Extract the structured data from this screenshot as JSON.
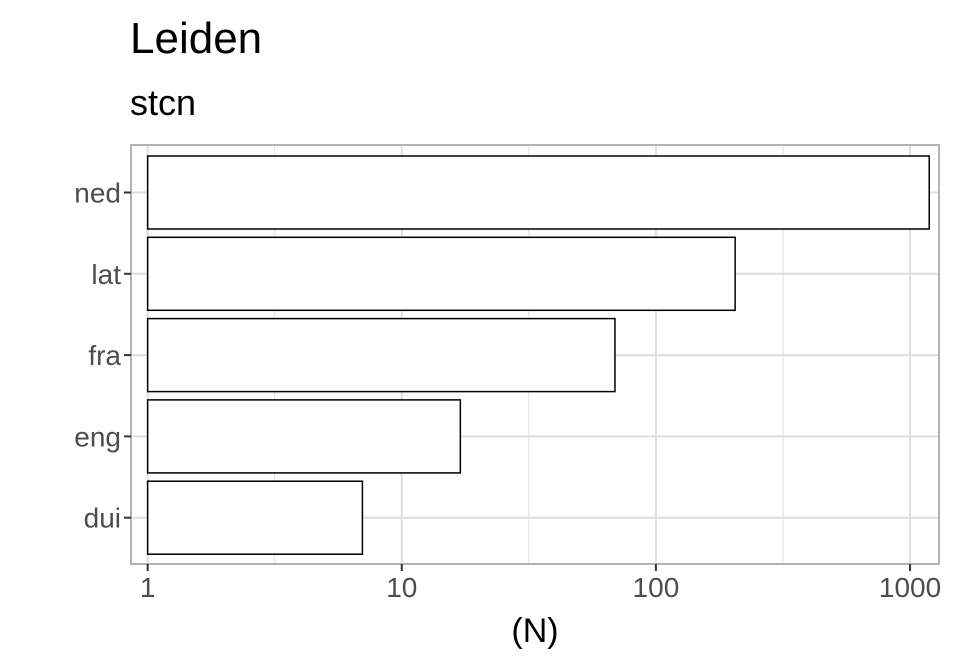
{
  "title": "Leiden",
  "subtitle": "stcn",
  "chart_data": {
    "type": "bar",
    "orientation": "horizontal",
    "categories": [
      "ned",
      "lat",
      "fra",
      "eng",
      "dui"
    ],
    "values": [
      1190,
      205,
      69,
      17,
      7
    ],
    "xlabel": "(N)",
    "ylabel": "",
    "x_scale": "log10",
    "xlim": [
      0.86,
      1300
    ],
    "x_ticks": [
      1,
      10,
      100,
      1000
    ],
    "x_tick_labels": [
      "1",
      "10",
      "100",
      "1000"
    ],
    "grid": true,
    "bar_fill": "#ffffff",
    "bar_stroke": "#000000",
    "panel_border": "#b3b3b3",
    "grid_color": "#dedede"
  }
}
